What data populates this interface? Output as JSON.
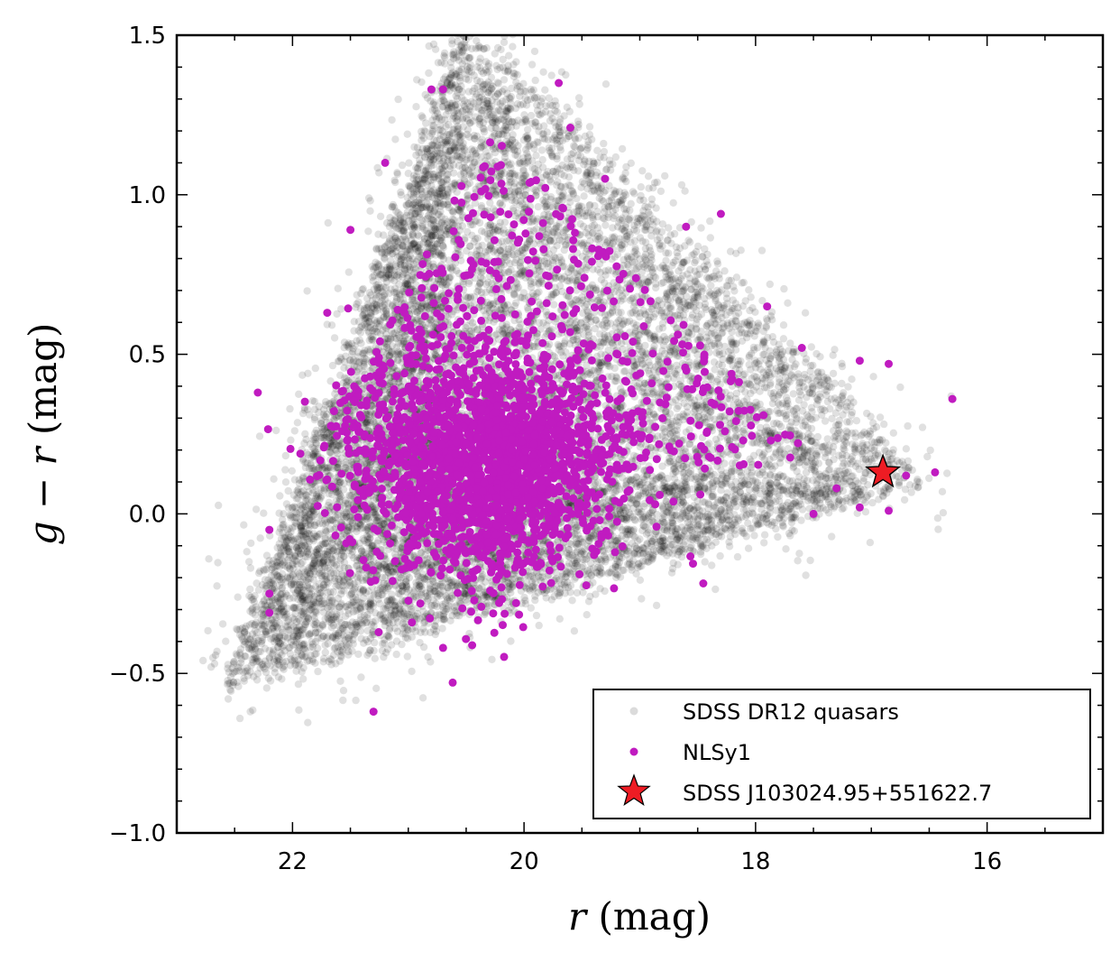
{
  "chart_data": {
    "type": "scatter",
    "xlabel": {
      "var": "r",
      "unit": "(mag)"
    },
    "ylabel": {
      "var": "g − r",
      "unit": "(mag)"
    },
    "xlim": [
      23.0,
      15.0
    ],
    "ylim": [
      -1.0,
      1.5
    ],
    "x_inverted": true,
    "xticks": [
      22,
      20,
      18,
      16
    ],
    "xtick_labels": [
      "22",
      "20",
      "18",
      "16"
    ],
    "yticks": [
      -1.0,
      -0.5,
      0.0,
      0.5,
      1.0,
      1.5
    ],
    "ytick_labels": [
      "−1.0",
      "−0.5",
      "0.0",
      "0.5",
      "1.0",
      "1.5"
    ],
    "grid": false,
    "legend_position": "lower-right",
    "series": [
      {
        "name": "SDSS DR12 quasars",
        "marker": "circle",
        "color": "#000000",
        "alpha": 0.12,
        "n_points_approx": 12000,
        "density_model": "triangular cloud bounded by vertices (r≈22.6, g−r≈−0.5), (r≈20.5, g−r≈1.5), (r≈16.5, g−r≈0.1), densest near (r≈20.8, g−r≈0.15)"
      },
      {
        "name": "NLSy1",
        "marker": "circle",
        "color": "#c01bc0",
        "n_points_approx": 2500,
        "core": {
          "x": 20.3,
          "y": 0.15,
          "sx": 0.7,
          "sy": 0.17
        },
        "outliers": [
          {
            "x": 22.3,
            "y": 0.38
          },
          {
            "x": 22.2,
            "y": -0.25
          },
          {
            "x": 22.2,
            "y": -0.31
          },
          {
            "x": 22.2,
            "y": -0.05
          },
          {
            "x": 21.3,
            "y": -0.62
          },
          {
            "x": 20.7,
            "y": -0.42
          },
          {
            "x": 20.8,
            "y": 1.33
          },
          {
            "x": 20.7,
            "y": 1.33
          },
          {
            "x": 19.7,
            "y": 1.35
          },
          {
            "x": 19.6,
            "y": 1.21
          },
          {
            "x": 18.6,
            "y": 0.9
          },
          {
            "x": 18.3,
            "y": 0.94
          },
          {
            "x": 17.9,
            "y": 0.65
          },
          {
            "x": 17.6,
            "y": 0.52
          },
          {
            "x": 17.1,
            "y": 0.48
          },
          {
            "x": 16.85,
            "y": 0.47
          },
          {
            "x": 16.3,
            "y": 0.36
          },
          {
            "x": 16.45,
            "y": 0.13
          },
          {
            "x": 16.7,
            "y": 0.12
          },
          {
            "x": 16.85,
            "y": 0.01
          },
          {
            "x": 17.1,
            "y": 0.02
          },
          {
            "x": 17.3,
            "y": 0.08
          },
          {
            "x": 17.5,
            "y": 0.0
          },
          {
            "x": 21.2,
            "y": 1.1
          },
          {
            "x": 21.7,
            "y": 0.63
          },
          {
            "x": 21.5,
            "y": 0.89
          },
          {
            "x": 19.3,
            "y": 1.05
          }
        ]
      },
      {
        "name": "SDSS J103024.95+551622.7",
        "marker": "star",
        "color": "#ee1c24",
        "edgecolor": "#000000",
        "points": [
          {
            "x": 16.9,
            "y": 0.13
          }
        ]
      }
    ]
  }
}
